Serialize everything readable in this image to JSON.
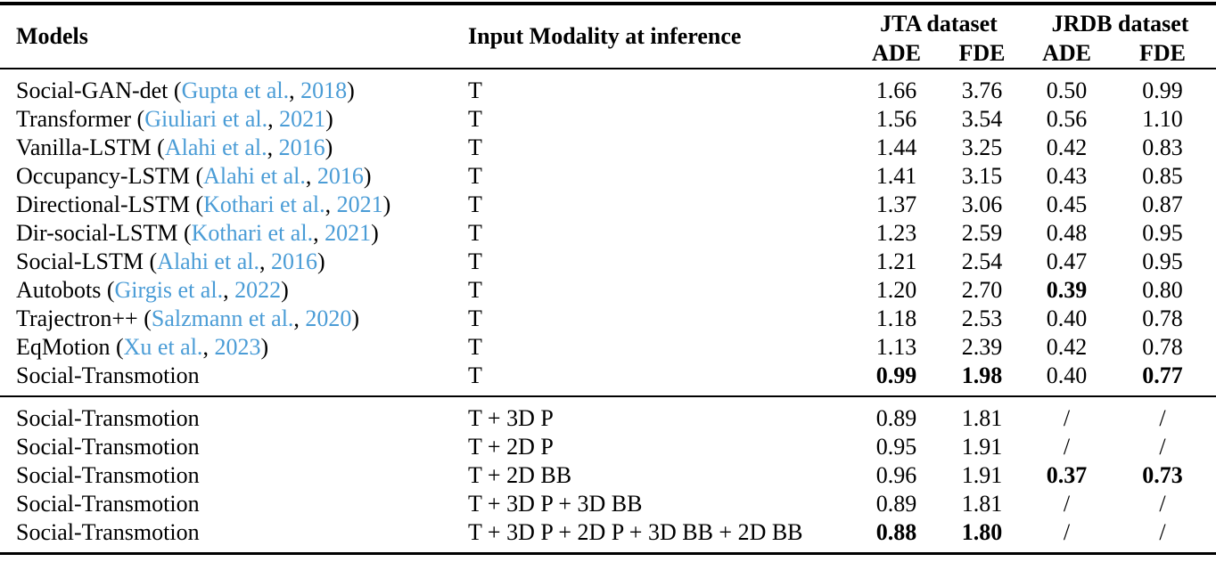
{
  "page": {
    "background": "#ffffff",
    "text_color": "#000000",
    "link_color": "#4a9cd6"
  },
  "table": {
    "headers": {
      "models": "Models",
      "modality": "Input Modality at inference",
      "jta_group": "JTA dataset",
      "jrdb_group": "JRDB dataset",
      "ade": "ADE",
      "fde": "FDE"
    },
    "sections": [
      {
        "rows": [
          {
            "model": "Social-GAN-det",
            "citation": {
              "authors": "Gupta et al.",
              "year": "2018"
            },
            "modality": "T",
            "values": [
              "1.66",
              "3.76",
              "0.50",
              "0.99"
            ],
            "bold": [
              false,
              false,
              false,
              false
            ]
          },
          {
            "model": "Transformer",
            "citation": {
              "authors": "Giuliari et al.",
              "year": "2021"
            },
            "modality": "T",
            "values": [
              "1.56",
              "3.54",
              "0.56",
              "1.10"
            ],
            "bold": [
              false,
              false,
              false,
              false
            ]
          },
          {
            "model": "Vanilla-LSTM",
            "citation": {
              "authors": "Alahi et al.",
              "year": "2016"
            },
            "modality": "T",
            "values": [
              "1.44",
              "3.25",
              "0.42",
              "0.83"
            ],
            "bold": [
              false,
              false,
              false,
              false
            ]
          },
          {
            "model": "Occupancy-LSTM",
            "citation": {
              "authors": "Alahi et al.",
              "year": "2016"
            },
            "modality": "T",
            "values": [
              "1.41",
              "3.15",
              "0.43",
              "0.85"
            ],
            "bold": [
              false,
              false,
              false,
              false
            ]
          },
          {
            "model": "Directional-LSTM",
            "citation": {
              "authors": "Kothari et al.",
              "year": "2021"
            },
            "modality": "T",
            "values": [
              "1.37",
              "3.06",
              "0.45",
              "0.87"
            ],
            "bold": [
              false,
              false,
              false,
              false
            ]
          },
          {
            "model": "Dir-social-LSTM",
            "citation": {
              "authors": "Kothari et al.",
              "year": "2021"
            },
            "modality": "T",
            "values": [
              "1.23",
              "2.59",
              "0.48",
              "0.95"
            ],
            "bold": [
              false,
              false,
              false,
              false
            ]
          },
          {
            "model": "Social-LSTM",
            "citation": {
              "authors": "Alahi et al.",
              "year": "2016"
            },
            "modality": "T",
            "values": [
              "1.21",
              "2.54",
              "0.47",
              "0.95"
            ],
            "bold": [
              false,
              false,
              false,
              false
            ]
          },
          {
            "model": "Autobots",
            "citation": {
              "authors": "Girgis et al.",
              "year": "2022"
            },
            "modality": "T",
            "values": [
              "1.20",
              "2.70",
              "0.39",
              "0.80"
            ],
            "bold": [
              false,
              false,
              true,
              false
            ]
          },
          {
            "model": "Trajectron++",
            "citation": {
              "authors": "Salzmann et al.",
              "year": "2020"
            },
            "modality": "T",
            "values": [
              "1.18",
              "2.53",
              "0.40",
              "0.78"
            ],
            "bold": [
              false,
              false,
              false,
              false
            ]
          },
          {
            "model": "EqMotion",
            "citation": {
              "authors": "Xu et al.",
              "year": "2023"
            },
            "modality": "T",
            "values": [
              "1.13",
              "2.39",
              "0.42",
              "0.78"
            ],
            "bold": [
              false,
              false,
              false,
              false
            ]
          },
          {
            "model": "Social-Transmotion",
            "citation": null,
            "modality": "T",
            "values": [
              "0.99",
              "1.98",
              "0.40",
              "0.77"
            ],
            "bold": [
              true,
              true,
              false,
              true
            ]
          }
        ]
      },
      {
        "rows": [
          {
            "model": "Social-Transmotion",
            "citation": null,
            "modality": "T + 3D P",
            "values": [
              "0.89",
              "1.81",
              "/",
              "/"
            ],
            "bold": [
              false,
              false,
              false,
              false
            ]
          },
          {
            "model": "Social-Transmotion",
            "citation": null,
            "modality": "T + 2D P",
            "values": [
              "0.95",
              "1.91",
              "/",
              "/"
            ],
            "bold": [
              false,
              false,
              false,
              false
            ]
          },
          {
            "model": "Social-Transmotion",
            "citation": null,
            "modality": "T + 2D BB",
            "values": [
              "0.96",
              "1.91",
              "0.37",
              "0.73"
            ],
            "bold": [
              false,
              false,
              true,
              true
            ]
          },
          {
            "model": "Social-Transmotion",
            "citation": null,
            "modality": "T + 3D P + 3D BB",
            "values": [
              "0.89",
              "1.81",
              "/",
              "/"
            ],
            "bold": [
              false,
              false,
              false,
              false
            ]
          },
          {
            "model": "Social-Transmotion",
            "citation": null,
            "modality": "T + 3D P + 2D P + 3D BB + 2D BB",
            "values": [
              "0.88",
              "1.80",
              "/",
              "/"
            ],
            "bold": [
              true,
              true,
              false,
              false
            ]
          }
        ]
      }
    ]
  }
}
